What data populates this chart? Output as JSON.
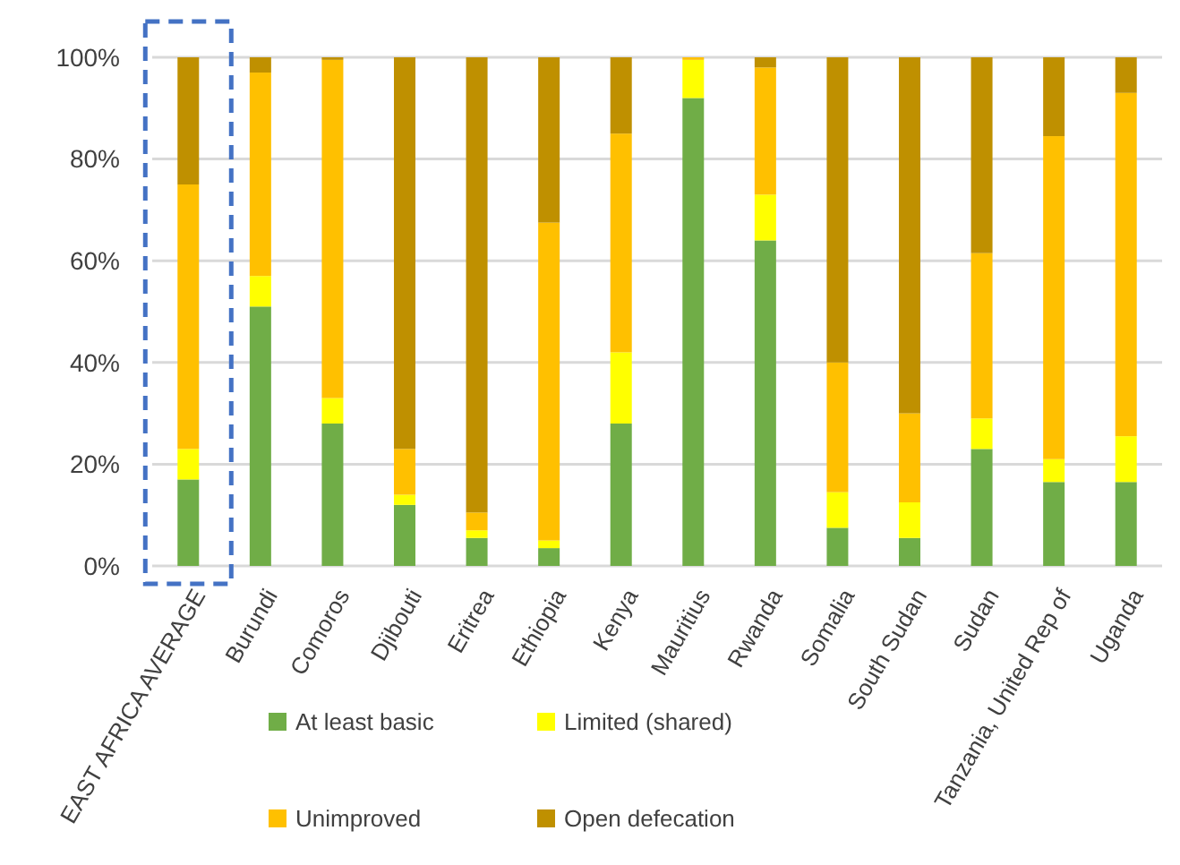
{
  "chart_data": {
    "type": "bar",
    "stacked": true,
    "categories": [
      "EAST AFRICA AVERAGE",
      "Burundi",
      "Comoros",
      "Djibouti",
      "Eritrea",
      "Ethiopia",
      "Kenya",
      "Mauritius",
      "Rwanda",
      "Somalia",
      "South Sudan",
      "Sudan",
      "Tanzania, United Rep of",
      "Uganda"
    ],
    "series": [
      {
        "name": "At least basic",
        "color": "#70ad47",
        "values": [
          17,
          51,
          28,
          12,
          5.5,
          3.5,
          28,
          92,
          64,
          7.5,
          5.5,
          23,
          16.5,
          16.5
        ]
      },
      {
        "name": "Limited (shared)",
        "color": "#ffff00",
        "values": [
          6,
          6,
          5,
          2,
          1.5,
          1.5,
          14,
          7.5,
          9,
          7,
          7,
          6,
          4.5,
          9
        ]
      },
      {
        "name": "Unimproved",
        "color": "#ffc000",
        "values": [
          52,
          40,
          66.5,
          9,
          3.5,
          62.5,
          43,
          0.5,
          25,
          25.5,
          17.5,
          32.5,
          63.5,
          67.5
        ]
      },
      {
        "name": "Open defecation",
        "color": "#bf9000",
        "values": [
          25,
          3,
          0.5,
          77,
          89.5,
          32.5,
          15,
          0,
          2,
          60,
          70,
          38.5,
          15.5,
          7
        ]
      }
    ],
    "ylim": [
      0,
      100
    ],
    "yticks": [
      {
        "value": 0,
        "label": "0%"
      },
      {
        "value": 20,
        "label": "20%"
      },
      {
        "value": 40,
        "label": "40%"
      },
      {
        "value": 60,
        "label": "60%"
      },
      {
        "value": 80,
        "label": "80%"
      },
      {
        "value": 100,
        "label": "100%"
      }
    ],
    "grid": "y",
    "legend": "bottom"
  }
}
